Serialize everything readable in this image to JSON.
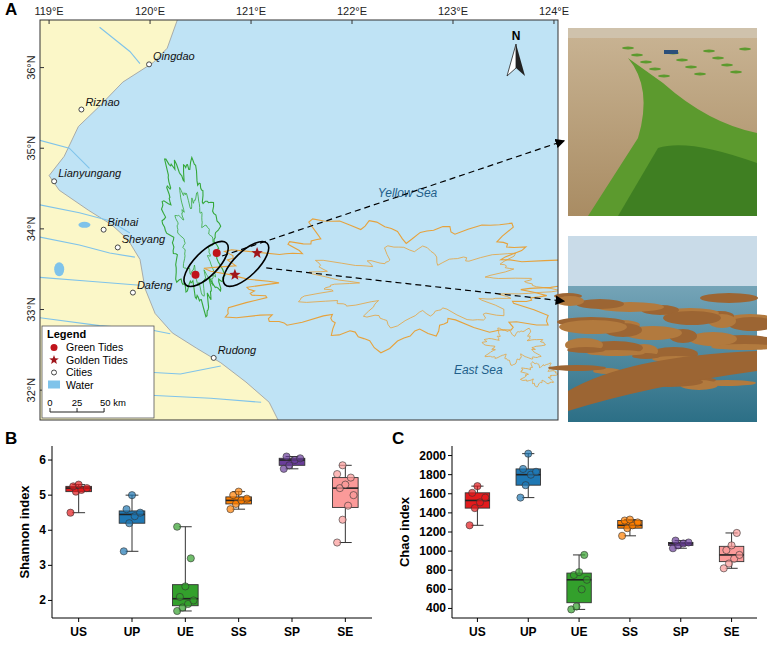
{
  "map": {
    "panel": "A",
    "xlim": [
      118.91,
      124.04
    ],
    "ylim": [
      31.63,
      36.59
    ],
    "xticks": [
      {
        "value": 119,
        "label": "119°E"
      },
      {
        "value": 120,
        "label": "120°E"
      },
      {
        "value": 121,
        "label": "121°E"
      },
      {
        "value": 122,
        "label": "122°E"
      },
      {
        "value": 123,
        "label": "123°E"
      },
      {
        "value": 124,
        "label": "124°E"
      }
    ],
    "yticks": [
      {
        "value": 32,
        "label": "32°N"
      },
      {
        "value": 33,
        "label": "33°N"
      },
      {
        "value": 34,
        "label": "34°N"
      },
      {
        "value": 35,
        "label": "35°N"
      },
      {
        "value": 36,
        "label": "36°N"
      }
    ],
    "cities": [
      {
        "name": "Qingdao",
        "lon": 119.99,
        "lat": 36.04
      },
      {
        "name": "Rizhao",
        "lon": 119.32,
        "lat": 35.48
      },
      {
        "name": "Lianyungang",
        "lon": 119.05,
        "lat": 34.59
      },
      {
        "name": "Binhai",
        "lon": 119.54,
        "lat": 33.99
      },
      {
        "name": "Sheyang",
        "lon": 119.68,
        "lat": 33.77
      },
      {
        "name": "Dafeng",
        "lon": 119.83,
        "lat": 33.21
      },
      {
        "name": "Rudong",
        "lon": 120.63,
        "lat": 32.4
      }
    ],
    "green_tides": [
      {
        "lon": 120.45,
        "lat": 33.43
      },
      {
        "lon": 120.66,
        "lat": 33.7
      }
    ],
    "golden_tides": [
      {
        "lon": 120.84,
        "lat": 33.43
      },
      {
        "lon": 121.06,
        "lat": 33.7
      }
    ],
    "sea_labels": [
      {
        "label": "Yellow Sea",
        "lon": 122.55,
        "lat": 34.4
      },
      {
        "label": "East Sea",
        "lon": 123.25,
        "lat": 32.2
      }
    ],
    "north": "N",
    "legend": {
      "title": "Legend",
      "items": [
        "Green Tides",
        "Golden Tides",
        "Cities",
        "Water"
      ]
    },
    "scale_bar": {
      "ticks": [
        0,
        25,
        {
          "value": 50,
          "label": "50 km"
        }
      ]
    }
  },
  "chart_data": [
    {
      "type": "box",
      "panel": "B",
      "y_label": "Shannon index",
      "categories": [
        "US",
        "UP",
        "UE",
        "SS",
        "SP",
        "SE"
      ],
      "colors": [
        "#e31a1c",
        "#1f78b4",
        "#33a02c",
        "#ff7f00",
        "#6a3d9a",
        "#fb9a99"
      ],
      "ylim": [
        1.5,
        6.4
      ],
      "yticks": [
        2,
        3,
        4,
        5,
        6
      ],
      "grid": false,
      "boxes": [
        {
          "min": 4.5,
          "q1": 5.1,
          "median": 5.2,
          "q3": 5.25,
          "max": 5.3,
          "points": [
            4.5,
            5.1,
            5.15,
            5.2,
            5.25,
            5.3
          ]
        },
        {
          "min": 3.4,
          "q1": 4.2,
          "median": 4.45,
          "q3": 4.55,
          "max": 5.0,
          "points": [
            3.4,
            4.2,
            4.4,
            4.5,
            4.6,
            5.0
          ]
        },
        {
          "min": 1.7,
          "q1": 1.85,
          "median": 2.05,
          "q3": 2.45,
          "max": 4.1,
          "points": [
            1.7,
            1.8,
            1.9,
            2.0,
            2.1,
            2.4,
            3.2,
            4.1
          ]
        },
        {
          "min": 4.6,
          "q1": 4.75,
          "median": 4.85,
          "q3": 4.95,
          "max": 5.1,
          "points": [
            4.6,
            4.75,
            4.85,
            4.9,
            5.0,
            5.1
          ]
        },
        {
          "min": 5.75,
          "q1": 5.85,
          "median": 6.0,
          "q3": 6.05,
          "max": 6.1,
          "points": [
            5.75,
            5.85,
            6.0,
            6.05,
            6.1
          ]
        },
        {
          "min": 3.65,
          "q1": 4.65,
          "median": 5.2,
          "q3": 5.5,
          "max": 5.85,
          "points": [
            3.65,
            4.3,
            4.7,
            5.0,
            5.2,
            5.3,
            5.5,
            5.6,
            5.85
          ]
        }
      ]
    },
    {
      "type": "box",
      "panel": "C",
      "y_label": "Chao index",
      "categories": [
        "US",
        "UP",
        "UE",
        "SS",
        "SP",
        "SE"
      ],
      "colors": [
        "#e31a1c",
        "#1f78b4",
        "#33a02c",
        "#ff7f00",
        "#6a3d9a",
        "#fb9a99"
      ],
      "ylim": [
        300,
        2100
      ],
      "yticks": [
        400,
        600,
        800,
        1000,
        1200,
        1400,
        1600,
        1800,
        2000
      ],
      "grid": false,
      "boxes": [
        {
          "min": 1270,
          "q1": 1450,
          "median": 1530,
          "q3": 1610,
          "max": 1680,
          "points": [
            1270,
            1450,
            1510,
            1560,
            1610,
            1680
          ]
        },
        {
          "min": 1560,
          "q1": 1690,
          "median": 1800,
          "q3": 1860,
          "max": 2020,
          "points": [
            1560,
            1690,
            1800,
            1830,
            1860,
            2020
          ]
        },
        {
          "min": 390,
          "q1": 460,
          "median": 700,
          "q3": 770,
          "max": 960,
          "points": [
            390,
            420,
            600,
            700,
            750,
            780,
            960
          ]
        },
        {
          "min": 1160,
          "q1": 1240,
          "median": 1270,
          "q3": 1320,
          "max": 1330,
          "points": [
            1160,
            1240,
            1270,
            1300,
            1320,
            1330
          ]
        },
        {
          "min": 1030,
          "q1": 1060,
          "median": 1080,
          "q3": 1090,
          "max": 1110,
          "points": [
            1030,
            1060,
            1080,
            1090,
            1110
          ]
        },
        {
          "min": 820,
          "q1": 890,
          "median": 960,
          "q3": 1050,
          "max": 1190,
          "points": [
            820,
            870,
            920,
            960,
            1010,
            1060,
            1190
          ]
        }
      ]
    }
  ]
}
